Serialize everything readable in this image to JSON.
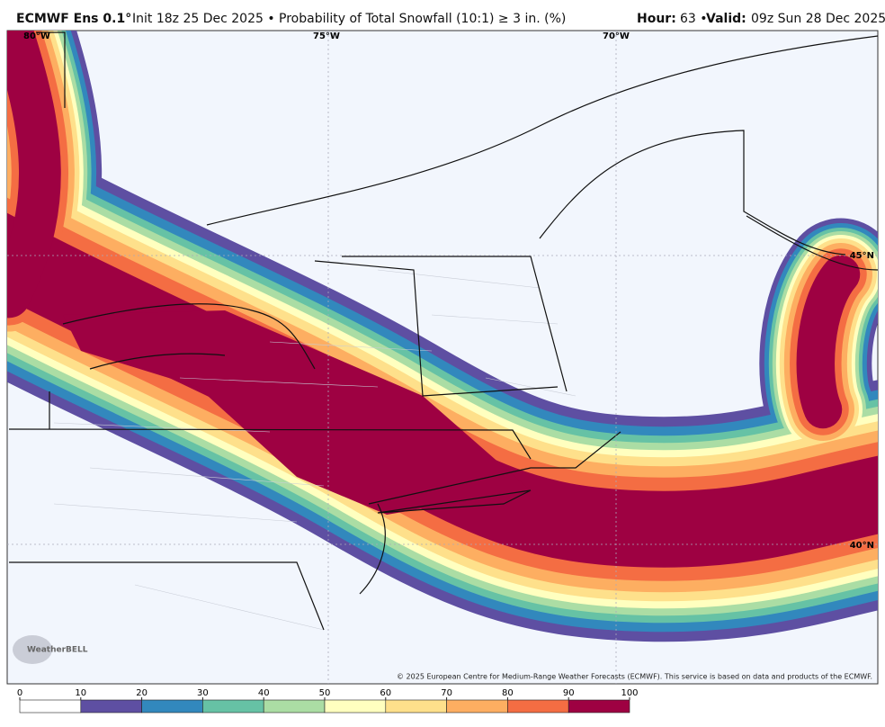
{
  "header": {
    "model": "ECMWF Ens 0.1°",
    "init": "Init 18z 25 Dec 2025 • Probability of Total Snowfall (10:1) ≥ 3 in. (%)",
    "hour_label": "Hour:",
    "hour": "63 •",
    "valid_label": "Valid:",
    "valid": "09z Sun 28 Dec 2025"
  },
  "map": {
    "lon_labels": [
      "80°W",
      "75°W",
      "70°W"
    ],
    "lat_labels": [
      "45°N",
      "40°N"
    ],
    "logo": "WeatherBELL",
    "credit": "© 2025 European Centre for Medium-Range Weather Forecasts (ECMWF). This service is based on data and products of the ECMWF."
  },
  "colorbar": {
    "ticks": [
      0,
      10,
      20,
      30,
      40,
      50,
      60,
      70,
      80,
      90,
      100
    ],
    "colors": [
      "#ffffff",
      "#5e4fa2",
      "#3288bd",
      "#66c2a5",
      "#abdda4",
      "#ffffbf",
      "#fee08b",
      "#fdae61",
      "#f46d43",
      "#9e0142"
    ]
  }
}
